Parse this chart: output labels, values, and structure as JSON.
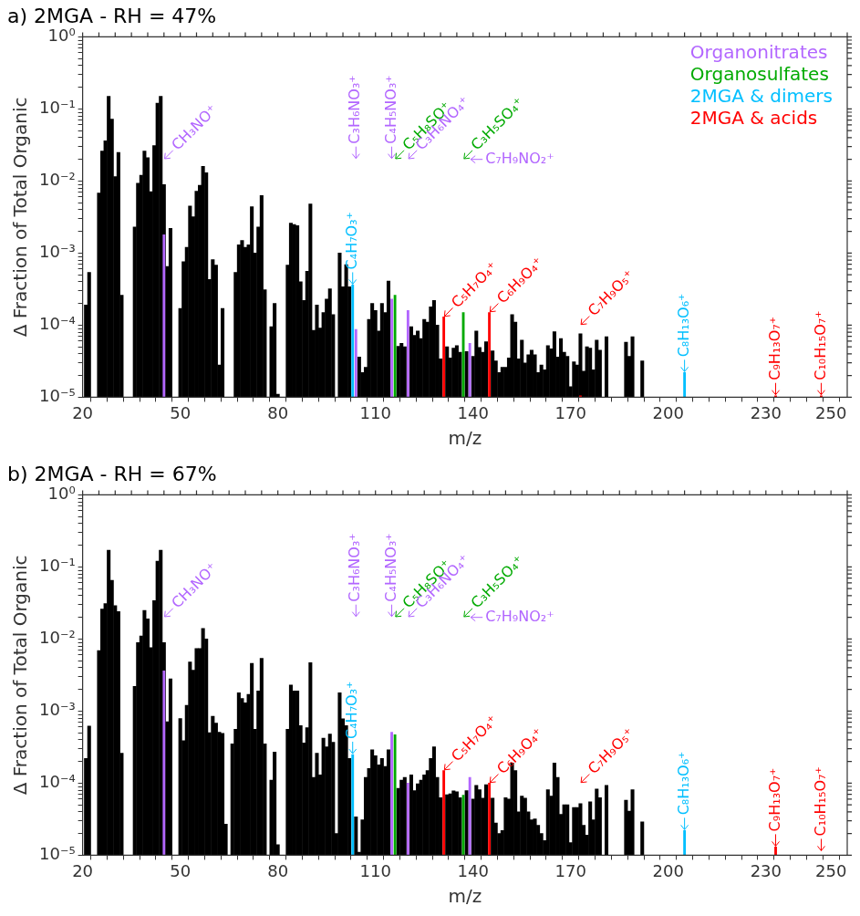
{
  "chart_data": [
    {
      "type": "bar",
      "title": "a) 2MGA - RH = 47%",
      "xlabel": "m/z",
      "ylabel": "Δ Fraction of Total Organic",
      "log": "y",
      "grid": false,
      "legend": "top right",
      "xlim": [
        20,
        255
      ],
      "ylim": [
        1e-05,
        1
      ],
      "xticks": [
        20,
        {
          "value": 25,
          "label": null
        },
        {
          "value": 30,
          "label": null
        },
        {
          "value": 35,
          "label": null
        },
        {
          "value": 40,
          "label": null
        },
        {
          "value": 45,
          "label": null
        },
        50,
        {
          "value": 55,
          "label": null
        },
        {
          "value": 60,
          "label": null
        },
        {
          "value": 65,
          "label": null
        },
        {
          "value": 70,
          "label": null
        },
        {
          "value": 75,
          "label": null
        },
        80,
        {
          "value": 85,
          "label": null
        },
        {
          "value": 90,
          "label": null
        },
        {
          "value": 95,
          "label": null
        },
        {
          "value": 100,
          "label": null
        },
        {
          "value": 105,
          "label": null
        },
        110,
        {
          "value": 115,
          "label": null
        },
        {
          "value": 120,
          "label": null
        },
        {
          "value": 125,
          "label": null
        },
        {
          "value": 130,
          "label": null
        },
        {
          "value": 135,
          "label": null
        },
        140,
        {
          "value": 145,
          "label": null
        },
        {
          "value": 150,
          "label": null
        },
        {
          "value": 155,
          "label": null
        },
        {
          "value": 160,
          "label": null
        },
        {
          "value": 165,
          "label": null
        },
        170,
        {
          "value": 175,
          "label": null
        },
        {
          "value": 180,
          "label": null
        },
        {
          "value": 185,
          "label": null
        },
        {
          "value": 190,
          "label": null
        },
        {
          "value": 195,
          "label": null
        },
        200,
        {
          "value": 205,
          "label": null
        },
        {
          "value": 210,
          "label": null
        },
        {
          "value": 215,
          "label": null
        },
        {
          "value": 220,
          "label": null
        },
        {
          "value": 225,
          "label": null
        },
        230,
        {
          "value": 235,
          "label": null
        },
        {
          "value": 240,
          "label": null
        },
        {
          "value": 245,
          "label": null
        },
        250,
        {
          "value": 255,
          "label": null
        }
      ],
      "yticks": [
        {
          "value": 1e-05,
          "label": "10⁻⁵"
        },
        {
          "value": 2e-05,
          "label": null
        },
        {
          "value": 3e-05,
          "label": null
        },
        {
          "value": 4e-05,
          "label": null
        },
        {
          "value": 5e-05,
          "label": null
        },
        {
          "value": 6e-05,
          "label": null
        },
        {
          "value": 7e-05,
          "label": null
        },
        {
          "value": 8e-05,
          "label": null
        },
        {
          "value": 9e-05,
          "label": null
        },
        {
          "value": 0.0001,
          "label": "10⁻⁴"
        },
        {
          "value": 0.0002,
          "label": null
        },
        {
          "value": 0.0003,
          "label": null
        },
        {
          "value": 0.0004,
          "label": null
        },
        {
          "value": 0.0005,
          "label": null
        },
        {
          "value": 0.0006,
          "label": null
        },
        {
          "value": 0.0007,
          "label": null
        },
        {
          "value": 0.0008,
          "label": null
        },
        {
          "value": 0.0009,
          "label": null
        },
        {
          "value": 0.001,
          "label": "10⁻³"
        },
        {
          "value": 0.002,
          "label": null
        },
        {
          "value": 0.003,
          "label": null
        },
        {
          "value": 0.004,
          "label": null
        },
        {
          "value": 0.005,
          "label": null
        },
        {
          "value": 0.006,
          "label": null
        },
        {
          "value": 0.007,
          "label": null
        },
        {
          "value": 0.008,
          "label": null
        },
        {
          "value": 0.009,
          "label": null
        },
        {
          "value": 0.01,
          "label": "10⁻²"
        },
        {
          "value": 0.02,
          "label": null
        },
        {
          "value": 0.03,
          "label": null
        },
        {
          "value": 0.04,
          "label": null
        },
        {
          "value": 0.05,
          "label": null
        },
        {
          "value": 0.06,
          "label": null
        },
        {
          "value": 0.07,
          "label": null
        },
        {
          "value": 0.08,
          "label": null
        },
        {
          "value": 0.09,
          "label": null
        },
        {
          "value": 0.1,
          "label": "10⁻¹"
        },
        {
          "value": 0.2,
          "label": null
        },
        {
          "value": 0.3,
          "label": null
        },
        {
          "value": 0.4,
          "label": null
        },
        {
          "value": 0.5,
          "label": null
        },
        {
          "value": 0.6,
          "label": null
        },
        {
          "value": 0.7,
          "label": null
        },
        {
          "value": 0.8,
          "label": null
        },
        {
          "value": 0.9,
          "label": null
        },
        {
          "value": 1,
          "label": "10⁰"
        }
      ],
      "series": [
        {
          "color": "#000000",
          "x": [
            21,
            22,
            25,
            26,
            27,
            28,
            29,
            30,
            31,
            32,
            36,
            37,
            38,
            39,
            40,
            41,
            42,
            43,
            44,
            45,
            46,
            47,
            50,
            51,
            52,
            53,
            54,
            55,
            56,
            57,
            58,
            59,
            60,
            61,
            62,
            63,
            67,
            68,
            69,
            70,
            71,
            72,
            73,
            74,
            75,
            76,
            78,
            79,
            80,
            83,
            84,
            85,
            86,
            87,
            88,
            89,
            90,
            91,
            92,
            93,
            94,
            95,
            96,
            97,
            99,
            100,
            101,
            102,
            105,
            106,
            107,
            108,
            109,
            110,
            111,
            112,
            113,
            114,
            117,
            118,
            119,
            121,
            122,
            123,
            124,
            125,
            126,
            127,
            128,
            129,
            130,
            132,
            133,
            134,
            135,
            136,
            138,
            140,
            141,
            142,
            143,
            144,
            146,
            147,
            148,
            149,
            150,
            151,
            152,
            153,
            154,
            155,
            156,
            157,
            158,
            159,
            160,
            161,
            162,
            163,
            164,
            165,
            166,
            167,
            168,
            169,
            170,
            171,
            172,
            173,
            174,
            175,
            176,
            177,
            178,
            179,
            181,
            187,
            188,
            189,
            192
          ],
          "values": [
            0.00019,
            0.00054,
            0.0068,
            0.026,
            0.036,
            0.15,
            0.072,
            0.0115,
            0.025,
            0.00026,
            0.0023,
            0.0093,
            0.012,
            0.026,
            0.021,
            0.0071,
            0.031,
            0.12,
            0.15,
            0.0089,
            0.00065,
            0.0022,
            0.00017,
            0.00076,
            0.0012,
            0.0045,
            0.0032,
            0.0072,
            0.0087,
            0.016,
            0.013,
            0.00043,
            0.00081,
            0.00068,
            2.8e-05,
            0.00017,
            0.00054,
            0.0013,
            0.0015,
            0.0012,
            0.0013,
            0.0044,
            0.001,
            0.0023,
            0.0063,
            0.00031,
            9.5e-05,
            0.0002,
            1.1e-05,
            0.00068,
            0.0026,
            0.0025,
            0.0024,
            0.0004,
            0.00022,
            0.00056,
            0.0048,
            8.5e-05,
            0.00019,
            9.1e-05,
            0.00015,
            0.00023,
            0.00032,
            0.00014,
            0.001,
            0.00034,
            0.00069,
            0.00034,
            3.6e-05,
            2.2e-05,
            2.6e-05,
            0.00012,
            0.0002,
            0.00016,
            8.3e-05,
            0.0002,
            0.00015,
            0.00041,
            5.1e-05,
            5.6e-05,
            5e-05,
            9.5e-05,
            7.2e-05,
            8.3e-05,
            6.5e-05,
            0.00012,
            0.00011,
            0.00018,
            0.00022,
            0.0001,
            3.4e-05,
            5e-05,
            3.5e-05,
            4.8e-05,
            5.2e-05,
            4.2e-05,
            4.3e-05,
            3.7e-05,
            8.3e-05,
            4.9e-05,
            4.2e-05,
            5.9e-05,
            4.4e-05,
            3.2e-05,
            2.2e-05,
            2.6e-05,
            2.6e-05,
            3.5e-05,
            0.00014,
            0.00011,
            3.4e-05,
            6.2e-05,
            3e-05,
            3.9e-05,
            4.5e-05,
            3.9e-05,
            2.2e-05,
            2.8e-05,
            2.4e-05,
            5.2e-05,
            4.7e-05,
            8.1e-05,
            3.6e-05,
            6.5e-05,
            4.2e-05,
            3.7e-05,
            1.4e-05,
            3.1e-05,
            2.8e-05,
            7.6e-05,
            2.3e-05,
            5e-05,
            4.8e-05,
            2.4e-05,
            6.2e-05,
            4.5e-05,
            6.9e-05,
            5.8e-05,
            3.7e-05,
            6.9e-05,
            3.2e-05
          ]
        },
        {
          "name": "Organonitrates",
          "color": "#b266ff",
          "x": [
            45,
            104,
            115,
            120,
            139
          ],
          "values": [
            0.0018,
            8.7e-05,
            0.00023,
            0.00016,
            5.6e-05
          ]
        },
        {
          "name": "Organosulfates",
          "color": "#00aa00",
          "x": [
            116,
            137
          ],
          "values": [
            0.00026,
            0.00015
          ]
        },
        {
          "name": "2MGA & dimers",
          "color": "#00bfff",
          "x": [
            103,
            205
          ],
          "values": [
            0.00036,
            2.2e-05
          ]
        },
        {
          "name": "2MGA & acids",
          "color": "#ff0000",
          "x": [
            131,
            145,
            173,
            233,
            247
          ],
          "values": [
            0.00013,
            0.00015,
            1.05e-05,
            1.05e-05,
            1.05e-05
          ]
        }
      ],
      "annotations": [
        {
          "text": "CH₃NO⁺",
          "x": 45
        },
        {
          "text": "C₃H₆NO₃⁺",
          "x": 104
        },
        {
          "text": "C₄H₅NO₃⁺",
          "x": 115
        },
        "C₅H₈SO⁺",
        "C₃H₆NO₄⁺",
        "C₃H₅SO₄⁺",
        "C₇H₉NO₂⁺",
        {
          "text": "C₄H₇O₃⁺",
          "x": 103,
          "y": 0.00036
        },
        {
          "text": "C₅H₇O₄⁺",
          "x": 131,
          "y": 0.00013
        },
        {
          "text": "C₆H₉O₄⁺",
          "x": 145,
          "y": 0.00015
        },
        "C₇H₉O₅⁺",
        {
          "text": "C₈H₁₃O₆⁺",
          "x": 205,
          "y": 2.2e-05
        },
        {
          "text": "C₉H₁₃O₇⁺",
          "x": 233,
          "y": 1.05e-05
        },
        {
          "text": "C₁₀H₁₅O₇⁺",
          "x": 247,
          "y": 1.05e-05
        }
      ]
    },
    {
      "type": "bar",
      "title": "b) 2MGA - RH = 67%",
      "xlabel": "m/z",
      "ylabel": "Δ Fraction of Total Organic",
      "log": "y",
      "grid": false,
      "legend": false,
      "xlim": [
        20,
        255
      ],
      "ylim": [
        1e-05,
        1
      ],
      "xticks": [
        20,
        {
          "value": 25,
          "label": null
        },
        {
          "value": 30,
          "label": null
        },
        {
          "value": 35,
          "label": null
        },
        {
          "value": 40,
          "label": null
        },
        {
          "value": 45,
          "label": null
        },
        50,
        {
          "value": 55,
          "label": null
        },
        {
          "value": 60,
          "label": null
        },
        {
          "value": 65,
          "label": null
        },
        {
          "value": 70,
          "label": null
        },
        {
          "value": 75,
          "label": null
        },
        80,
        {
          "value": 85,
          "label": null
        },
        {
          "value": 90,
          "label": null
        },
        {
          "value": 95,
          "label": null
        },
        {
          "value": 100,
          "label": null
        },
        {
          "value": 105,
          "label": null
        },
        110,
        {
          "value": 115,
          "label": null
        },
        {
          "value": 120,
          "label": null
        },
        {
          "value": 125,
          "label": null
        },
        {
          "value": 130,
          "label": null
        },
        {
          "value": 135,
          "label": null
        },
        140,
        {
          "value": 145,
          "label": null
        },
        {
          "value": 150,
          "label": null
        },
        {
          "value": 155,
          "label": null
        },
        {
          "value": 160,
          "label": null
        },
        {
          "value": 165,
          "label": null
        },
        170,
        {
          "value": 175,
          "label": null
        },
        {
          "value": 180,
          "label": null
        },
        {
          "value": 185,
          "label": null
        },
        {
          "value": 190,
          "label": null
        },
        {
          "value": 195,
          "label": null
        },
        200,
        {
          "value": 205,
          "label": null
        },
        {
          "value": 210,
          "label": null
        },
        {
          "value": 215,
          "label": null
        },
        {
          "value": 220,
          "label": null
        },
        {
          "value": 225,
          "label": null
        },
        230,
        {
          "value": 235,
          "label": null
        },
        {
          "value": 240,
          "label": null
        },
        {
          "value": 245,
          "label": null
        },
        250,
        {
          "value": 255,
          "label": null
        }
      ],
      "yticks": [
        {
          "value": 1e-05,
          "label": "10⁻⁵"
        },
        {
          "value": 2e-05,
          "label": null
        },
        {
          "value": 3e-05,
          "label": null
        },
        {
          "value": 4e-05,
          "label": null
        },
        {
          "value": 5e-05,
          "label": null
        },
        {
          "value": 6e-05,
          "label": null
        },
        {
          "value": 7e-05,
          "label": null
        },
        {
          "value": 8e-05,
          "label": null
        },
        {
          "value": 9e-05,
          "label": null
        },
        {
          "value": 0.0001,
          "label": "10⁻⁴"
        },
        {
          "value": 0.0002,
          "label": null
        },
        {
          "value": 0.0003,
          "label": null
        },
        {
          "value": 0.0004,
          "label": null
        },
        {
          "value": 0.0005,
          "label": null
        },
        {
          "value": 0.0006,
          "label": null
        },
        {
          "value": 0.0007,
          "label": null
        },
        {
          "value": 0.0008,
          "label": null
        },
        {
          "value": 0.0009,
          "label": null
        },
        {
          "value": 0.001,
          "label": "10⁻³"
        },
        {
          "value": 0.002,
          "label": null
        },
        {
          "value": 0.003,
          "label": null
        },
        {
          "value": 0.004,
          "label": null
        },
        {
          "value": 0.005,
          "label": null
        },
        {
          "value": 0.006,
          "label": null
        },
        {
          "value": 0.007,
          "label": null
        },
        {
          "value": 0.008,
          "label": null
        },
        {
          "value": 0.009,
          "label": null
        },
        {
          "value": 0.01,
          "label": "10⁻²"
        },
        {
          "value": 0.02,
          "label": null
        },
        {
          "value": 0.03,
          "label": null
        },
        {
          "value": 0.04,
          "label": null
        },
        {
          "value": 0.05,
          "label": null
        },
        {
          "value": 0.06,
          "label": null
        },
        {
          "value": 0.07,
          "label": null
        },
        {
          "value": 0.08,
          "label": null
        },
        {
          "value": 0.09,
          "label": null
        },
        {
          "value": 0.1,
          "label": "10⁻¹"
        },
        {
          "value": 0.2,
          "label": null
        },
        {
          "value": 0.3,
          "label": null
        },
        {
          "value": 0.4,
          "label": null
        },
        {
          "value": 0.5,
          "label": null
        },
        {
          "value": 0.6,
          "label": null
        },
        {
          "value": 0.7,
          "label": null
        },
        {
          "value": 0.8,
          "label": null
        },
        {
          "value": 0.9,
          "label": null
        },
        {
          "value": 1,
          "label": "10⁰"
        }
      ],
      "series": [
        {
          "color": "#000000",
          "x": [
            21,
            22,
            25,
            26,
            27,
            28,
            29,
            30,
            31,
            32,
            36,
            37,
            38,
            39,
            40,
            41,
            42,
            43,
            44,
            45,
            46,
            47,
            50,
            51,
            52,
            53,
            54,
            55,
            56,
            57,
            58,
            59,
            60,
            61,
            62,
            63,
            64,
            66,
            67,
            68,
            69,
            70,
            71,
            72,
            73,
            74,
            75,
            76,
            78,
            79,
            80,
            83,
            84,
            85,
            86,
            87,
            88,
            89,
            90,
            91,
            92,
            93,
            94,
            95,
            96,
            97,
            98,
            99,
            100,
            101,
            102,
            104,
            105,
            106,
            107,
            108,
            109,
            110,
            111,
            112,
            113,
            114,
            117,
            118,
            119,
            121,
            122,
            123,
            124,
            125,
            126,
            127,
            128,
            129,
            130,
            132,
            133,
            134,
            135,
            136,
            138,
            140,
            141,
            142,
            143,
            144,
            146,
            147,
            148,
            149,
            150,
            151,
            152,
            153,
            154,
            155,
            156,
            157,
            158,
            159,
            160,
            161,
            162,
            163,
            164,
            165,
            166,
            167,
            168,
            169,
            170,
            171,
            172,
            173,
            174,
            175,
            176,
            177,
            178,
            179,
            181,
            187,
            188,
            189,
            192
          ],
          "values": [
            0.00022,
            0.00062,
            0.0069,
            0.026,
            0.031,
            0.17,
            0.065,
            0.029,
            0.024,
            0.00026,
            0.0022,
            0.0089,
            0.011,
            0.025,
            0.019,
            0.0076,
            0.034,
            0.12,
            0.17,
            0.0089,
            0.00071,
            0.0028,
            0.00079,
            0.00039,
            0.0012,
            0.0048,
            0.0037,
            0.0074,
            0.0074,
            0.014,
            0.01,
            0.0005,
            0.00085,
            0.00068,
            0.00051,
            0.00049,
            2.7e-05,
            0.00035,
            0.00056,
            0.0018,
            0.0015,
            0.0013,
            0.0017,
            0.0046,
            0.00056,
            0.0019,
            0.0054,
            0.00035,
            0.00011,
            0.00027,
            1.4e-05,
            0.00056,
            0.0023,
            0.0019,
            0.0019,
            0.00063,
            0.00036,
            0.00059,
            0.0047,
            0.00012,
            0.00026,
            0.00013,
            0.00042,
            0.00032,
            0.00048,
            0.00037,
            2e-05,
            0.0018,
            0.00078,
            0.00063,
            0.00022,
            3.4e-05,
            1.1e-05,
            3.1e-05,
            0.00012,
            0.00016,
            0.00029,
            0.00024,
            0.00018,
            0.00022,
            0.00017,
            0.00029,
            8.5e-05,
            0.00011,
            0.00012,
            0.00013,
            7.9e-05,
            9.8e-05,
            0.00011,
            0.00013,
            0.00015,
            0.00022,
            0.00032,
            0.00012,
            6.3e-05,
            6.9e-05,
            7.1e-05,
            7.8e-05,
            7.6e-05,
            6.3e-05,
            7.9e-05,
            6e-05,
            9.3e-05,
            8.1e-05,
            6.2e-05,
            9.5e-05,
            6.2e-05,
            2.8e-05,
            2e-05,
            2.2e-05,
            6.3e-05,
            6e-05,
            0.00019,
            0.00015,
            4e-05,
            6.6e-05,
            6.2e-05,
            4e-05,
            3.1e-05,
            3.2e-05,
            2.6e-05,
            2e-05,
            1.6e-05,
            8.1e-05,
            6.6e-05,
            0.00019,
            0.00012,
            3.7e-05,
            5e-05,
            5e-05,
            1.5e-05,
            4.6e-05,
            4.6e-05,
            5.2e-05,
            2.6e-05,
            1.9e-05,
            5.5e-05,
            3.1e-05,
            8.3e-05,
            6.3e-05,
            9.3e-05,
            5.8e-05,
            4.1e-05,
            8.1e-05,
            2.9e-05
          ]
        },
        {
          "color": "#b266ff",
          "x": [
            45,
            115,
            120,
            139
          ],
          "values": [
            0.0036,
            0.00051,
            0.0001,
            0.00012
          ]
        },
        {
          "color": "#00aa00",
          "x": [
            116,
            137
          ],
          "values": [
            0.00047,
            6.8e-05
          ]
        },
        {
          "color": "#00bfff",
          "x": [
            103,
            205
          ],
          "values": [
            0.00025,
            2.2e-05
          ]
        },
        {
          "color": "#ff0000",
          "x": [
            131,
            145,
            233
          ],
          "values": [
            0.00015,
            0.0001,
            1.3e-05
          ]
        }
      ],
      "annotations": [
        {
          "text": "CH₃NO⁺",
          "x": 45
        },
        {
          "text": "C₃H₆NO₃⁺",
          "x": 104
        },
        {
          "text": "C₄H₅NO₃⁺",
          "x": 115
        },
        "C₅H₈SO⁺",
        "C₃H₆NO₄⁺",
        "C₃H₅SO₄⁺",
        "C₇H₉NO₂⁺",
        {
          "text": "C₄H₇O₃⁺",
          "x": 103,
          "y": 0.00025
        },
        {
          "text": "C₅H₇O₄⁺",
          "x": 131,
          "y": 0.00015
        },
        {
          "text": "C₆H₉O₄⁺",
          "x": 145,
          "y": 0.0001
        },
        "C₇H₉O₅⁺",
        {
          "text": "C₈H₁₃O₆⁺",
          "x": 205,
          "y": 2.2e-05
        },
        {
          "text": "C₉H₁₃O₇⁺",
          "x": 233,
          "y": 1.3e-05
        },
        "C₁₀H₁₅O₇⁺"
      ]
    }
  ]
}
